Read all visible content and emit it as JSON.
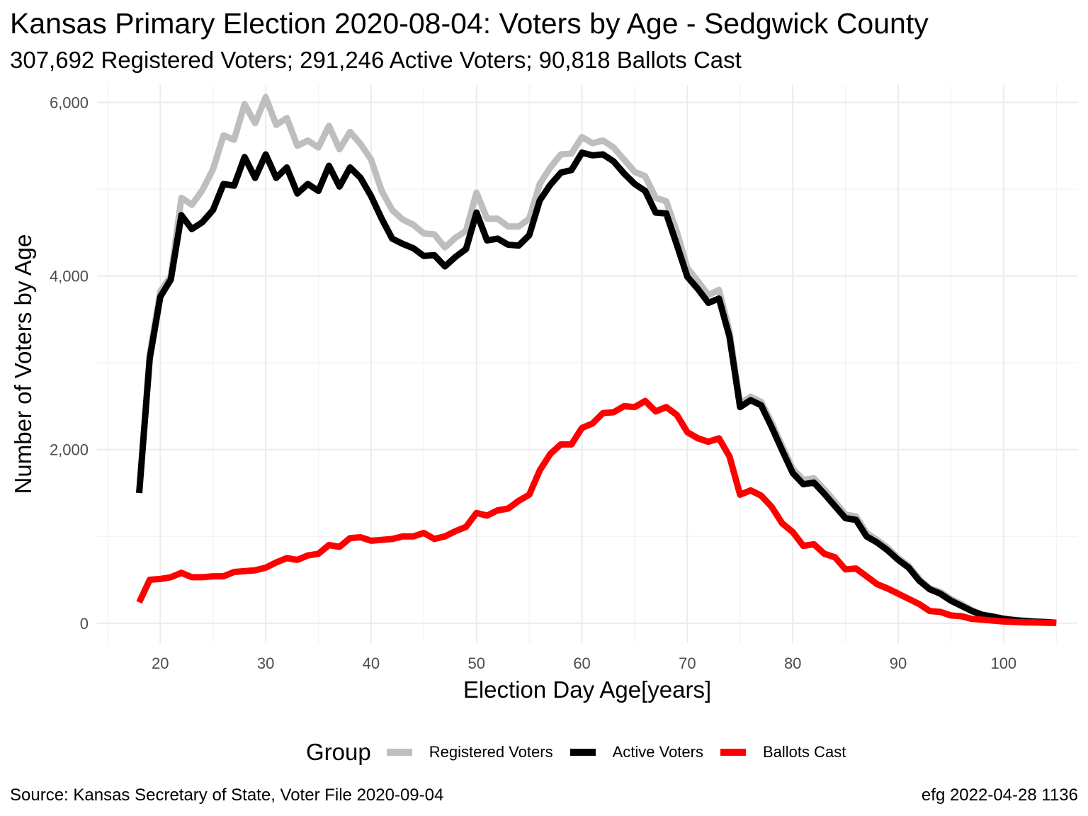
{
  "title": "Kansas Primary Election 2020-08-04:  Voters by Age - Sedgwick County",
  "subtitle": "307,692 Registered Voters; 291,246 Active Voters; 90,818 Ballots Cast",
  "source": "Source:  Kansas Secretary of State, Voter File  2020-09-04",
  "credit": "efg 2022-04-28 1136",
  "legend": {
    "title": "Group",
    "items": [
      {
        "label": "Registered Voters",
        "color": "#bebebe"
      },
      {
        "label": "Active Voters",
        "color": "#000000"
      },
      {
        "label": "Ballots Cast",
        "color": "#ff0000"
      }
    ]
  },
  "chart_data": {
    "type": "line",
    "xlabel": "Election Day Age[years]",
    "ylabel": "Number of Voters by Age",
    "xlim": [
      14,
      107
    ],
    "ylim": [
      -230,
      6200
    ],
    "x_ticks": [
      20,
      30,
      40,
      50,
      60,
      70,
      80,
      90,
      100
    ],
    "x_tick_labels": [
      "20",
      "30",
      "40",
      "50",
      "60",
      "70",
      "80",
      "90",
      "100"
    ],
    "y_ticks": [
      0,
      2000,
      4000,
      6000
    ],
    "y_tick_labels": [
      "0",
      "2,000",
      "4,000",
      "6,000"
    ],
    "grid": true,
    "legend_position": "bottom",
    "x": [
      18,
      19,
      20,
      21,
      22,
      23,
      24,
      25,
      26,
      27,
      28,
      29,
      30,
      31,
      32,
      33,
      34,
      35,
      36,
      37,
      38,
      39,
      40,
      41,
      42,
      43,
      44,
      45,
      46,
      47,
      48,
      49,
      50,
      51,
      52,
      53,
      54,
      55,
      56,
      57,
      58,
      59,
      60,
      61,
      62,
      63,
      64,
      65,
      66,
      67,
      68,
      69,
      70,
      71,
      72,
      73,
      74,
      75,
      76,
      77,
      78,
      79,
      80,
      81,
      82,
      83,
      84,
      85,
      86,
      87,
      88,
      89,
      90,
      91,
      92,
      93,
      94,
      95,
      96,
      97,
      98,
      99,
      100,
      101,
      102,
      103,
      104,
      105
    ],
    "series": [
      {
        "name": "Registered Voters",
        "color": "#bebebe",
        "values": [
          1500,
          3100,
          3820,
          4000,
          4900,
          4820,
          4990,
          5230,
          5620,
          5570,
          5980,
          5760,
          6060,
          5740,
          5820,
          5500,
          5560,
          5480,
          5730,
          5460,
          5660,
          5520,
          5340,
          4980,
          4760,
          4650,
          4590,
          4490,
          4480,
          4330,
          4440,
          4520,
          4960,
          4660,
          4660,
          4570,
          4570,
          4660,
          5060,
          5250,
          5400,
          5410,
          5600,
          5530,
          5560,
          5480,
          5340,
          5200,
          5150,
          4900,
          4860,
          4510,
          4090,
          3940,
          3780,
          3840,
          3360,
          2530,
          2610,
          2550,
          2310,
          2040,
          1780,
          1650,
          1670,
          1540,
          1400,
          1250,
          1230,
          1040,
          960,
          870,
          750,
          660,
          510,
          400,
          360,
          280,
          220,
          150,
          100,
          80,
          55,
          40,
          30,
          20,
          15,
          5
        ]
      },
      {
        "name": "Active Voters",
        "color": "#000000",
        "values": [
          1500,
          3050,
          3760,
          3960,
          4700,
          4540,
          4620,
          4760,
          5060,
          5040,
          5370,
          5130,
          5400,
          5130,
          5250,
          4950,
          5060,
          4980,
          5270,
          5030,
          5250,
          5130,
          4920,
          4660,
          4430,
          4370,
          4320,
          4230,
          4240,
          4110,
          4220,
          4310,
          4730,
          4410,
          4430,
          4360,
          4350,
          4470,
          4870,
          5050,
          5190,
          5220,
          5420,
          5390,
          5400,
          5320,
          5180,
          5060,
          4980,
          4730,
          4720,
          4360,
          3990,
          3850,
          3690,
          3740,
          3300,
          2490,
          2570,
          2510,
          2260,
          1990,
          1730,
          1600,
          1620,
          1490,
          1350,
          1210,
          1190,
          1000,
          930,
          840,
          730,
          640,
          490,
          390,
          340,
          260,
          200,
          140,
          95,
          75,
          50,
          35,
          25,
          18,
          12,
          5
        ]
      },
      {
        "name": "Ballots Cast",
        "color": "#ff0000",
        "values": [
          240,
          500,
          510,
          530,
          580,
          530,
          530,
          540,
          540,
          590,
          600,
          610,
          640,
          700,
          750,
          730,
          780,
          800,
          900,
          880,
          980,
          990,
          950,
          960,
          970,
          1000,
          1000,
          1040,
          970,
          1000,
          1060,
          1110,
          1270,
          1240,
          1300,
          1320,
          1410,
          1480,
          1760,
          1950,
          2060,
          2060,
          2250,
          2300,
          2420,
          2430,
          2500,
          2490,
          2560,
          2440,
          2490,
          2400,
          2200,
          2130,
          2090,
          2130,
          1920,
          1480,
          1530,
          1470,
          1340,
          1150,
          1050,
          890,
          910,
          800,
          760,
          620,
          630,
          540,
          450,
          400,
          340,
          280,
          220,
          140,
          130,
          90,
          80,
          50,
          40,
          30,
          20,
          15,
          10,
          8,
          5,
          3
        ]
      }
    ]
  }
}
